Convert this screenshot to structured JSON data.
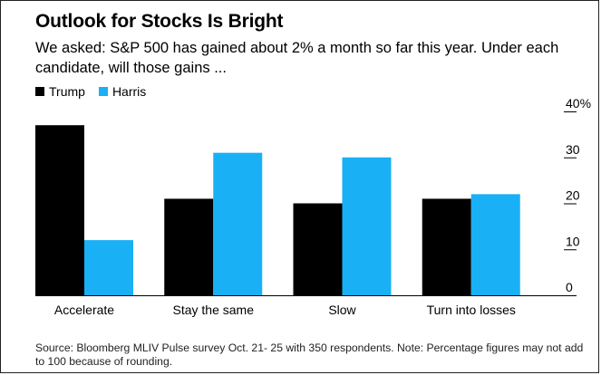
{
  "chart_data": {
    "type": "bar",
    "title": "Outlook for Stocks Is Bright",
    "subtitle": "We asked: S&P 500 has gained about 2% a month so far this year. Under each candidate, will those gains ...",
    "categories": [
      "Accelerate",
      "Stay the same",
      "Slow",
      "Turn into losses"
    ],
    "series": [
      {
        "name": "Trump",
        "color": "#000000",
        "values": [
          37,
          21,
          20,
          21
        ]
      },
      {
        "name": "Harris",
        "color": "#1AB0F5",
        "values": [
          12,
          31,
          30,
          22
        ]
      }
    ],
    "yaxis": {
      "min": 0,
      "max": 40,
      "position": "right",
      "ticks": [
        {
          "value": 0,
          "label": "0"
        },
        {
          "value": 10,
          "label": "10"
        },
        {
          "value": 20,
          "label": "20"
        },
        {
          "value": 30,
          "label": "30"
        },
        {
          "value": 40,
          "label": "40%"
        }
      ]
    },
    "grid": false,
    "legend": "top-left",
    "source": "Source: Bloomberg MLIV Pulse survey Oct. 21- 25 with 350 respondents. Note: Percentage figures may not add to 100 because of rounding."
  }
}
